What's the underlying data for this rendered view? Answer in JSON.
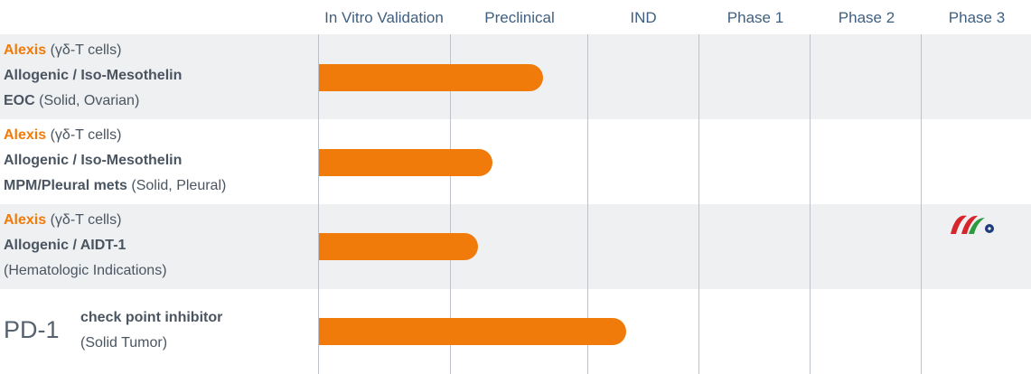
{
  "chart_data": {
    "type": "bar",
    "orientation": "horizontal",
    "stages": [
      "In Vitro Validation",
      "Preclinical",
      "IND",
      "Phase 1",
      "Phase 2",
      "Phase 3"
    ],
    "programs": [
      {
        "name": "Alexis",
        "cells": "(γδ-T cells)",
        "target": "Allogenic / Iso-Mesothelin",
        "indication": "EOC",
        "indication_detail": "(Solid, Ovarian)",
        "progress": 1.67
      },
      {
        "name": "Alexis",
        "cells": "(γδ-T cells)",
        "target": "Allogenic / Iso-Mesothelin",
        "indication": "MPM/Pleural mets",
        "indication_detail": "(Solid, Pleural)",
        "progress": 1.3
      },
      {
        "name": "Alexis",
        "cells": "(γδ-T cells)",
        "target": "Allogenic / AIDT-1",
        "indication": "",
        "indication_detail": "(Hematologic Indications)",
        "progress": 1.2
      },
      {
        "name": "PD-1",
        "cells": "",
        "target": "check point inhibitor",
        "indication": "",
        "indication_detail": "(Solid Tumor)",
        "progress": 2.34
      }
    ],
    "bar_color": "#f07b0a"
  }
}
